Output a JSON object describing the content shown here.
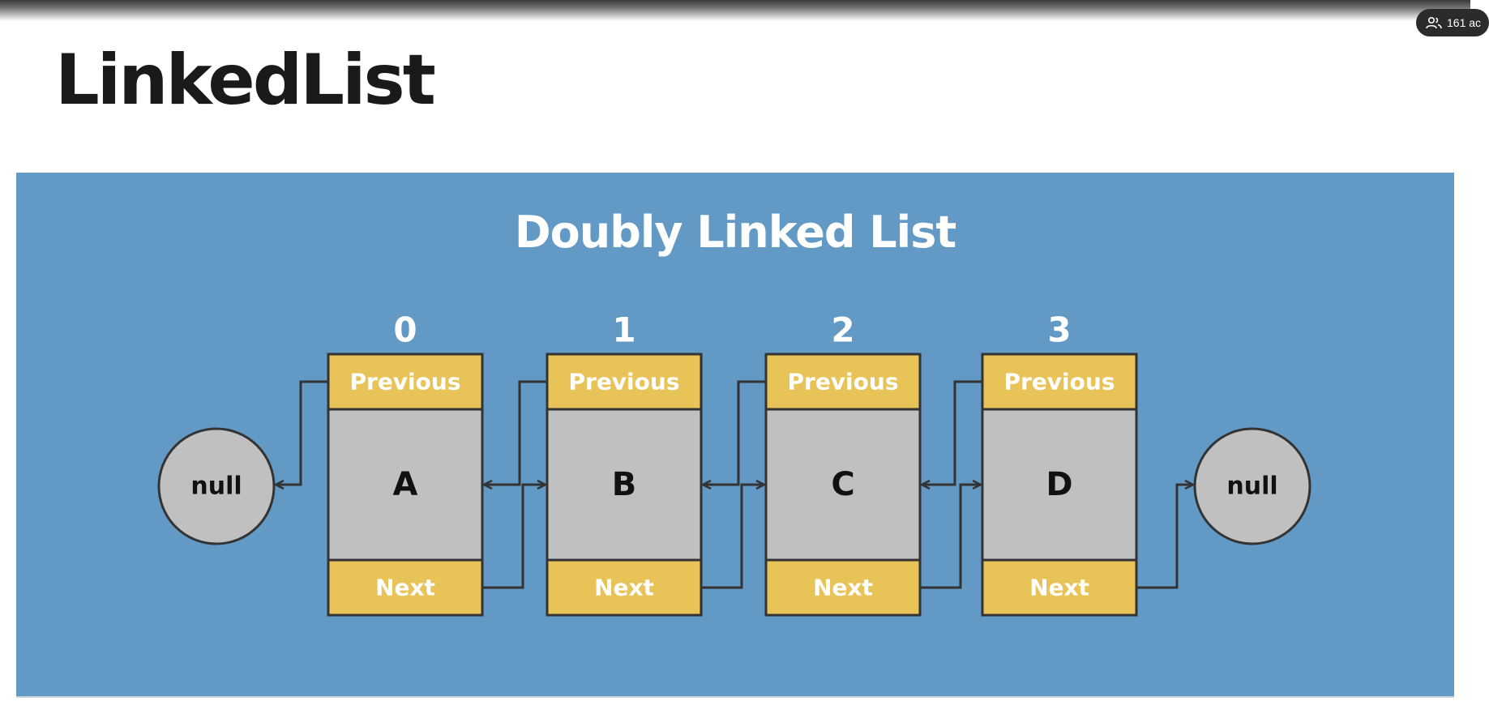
{
  "header": {
    "title": "LinkedList"
  },
  "overlay": {
    "participants_text": "161 ac",
    "icon": "participants-icon"
  },
  "diagram": {
    "title": "Doubly Linked List",
    "previous_label": "Previous",
    "next_label": "Next",
    "null_left": "null",
    "null_right": "null",
    "nodes": [
      {
        "index": "0",
        "value": "A"
      },
      {
        "index": "1",
        "value": "B"
      },
      {
        "index": "2",
        "value": "C"
      },
      {
        "index": "3",
        "value": "D"
      }
    ],
    "colors": {
      "panel": "#6399c5",
      "field": "#e8c357",
      "body": "#c0c0c0",
      "null_circle": "#c0c0c0",
      "stroke": "#333333"
    }
  }
}
